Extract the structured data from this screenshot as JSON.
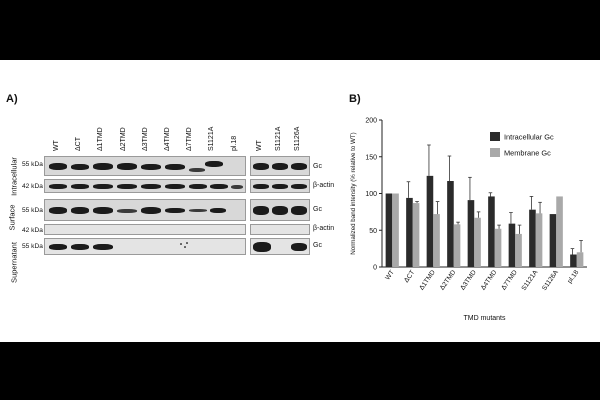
{
  "panels": {
    "a_label": "A)",
    "b_label": "B)"
  },
  "blot": {
    "lanes_left": [
      "WT",
      "ΔCT",
      "Δ1TMD",
      "Δ2TMD",
      "Δ3TMD",
      "Δ4TMD",
      "Δ7TMD",
      "S1121A",
      "pl.18"
    ],
    "lanes_right": [
      "WT",
      "S1121A",
      "S1126A"
    ],
    "rows": [
      {
        "kda": "55 kDa",
        "protein": "Gc"
      },
      {
        "kda": "42 kDa",
        "protein": "β-actin"
      },
      {
        "kda": "55 kDa",
        "protein": "Gc"
      },
      {
        "kda": "42 kDa",
        "protein": "β-actin"
      },
      {
        "kda": "55 kDa",
        "protein": "Gc"
      }
    ],
    "sections": [
      "Intracellular",
      "Surface",
      "Supernatant"
    ]
  },
  "chart_data": {
    "type": "bar",
    "categories": [
      "WT",
      "ΔCT",
      "Δ1TMD",
      "Δ2TMD",
      "Δ3TMD",
      "Δ4TMD",
      "Δ7TMD",
      "S1121A",
      "S1126A",
      "pl.18"
    ],
    "series": [
      {
        "name": "Intracellular Gc",
        "color": "#2b2b2b",
        "values": [
          100,
          94,
          124,
          117,
          91,
          96,
          59,
          78,
          72,
          17
        ],
        "errors": [
          0,
          22,
          42,
          34,
          31,
          5,
          15,
          18,
          null,
          8
        ]
      },
      {
        "name": "Membrane Gc",
        "color": "#a9a9a9",
        "values": [
          100,
          87,
          72,
          58,
          67,
          52,
          45,
          73,
          96,
          20
        ],
        "errors": [
          0,
          2,
          17,
          3,
          8,
          5,
          12,
          15,
          null,
          16
        ]
      }
    ],
    "xlabel": "TMD mutants",
    "ylabel": "Normalized band intensity (% relative to WT)",
    "ylim": [
      0,
      200
    ],
    "yticks": [
      0,
      50,
      100,
      150,
      200
    ],
    "legend": "top-right"
  }
}
